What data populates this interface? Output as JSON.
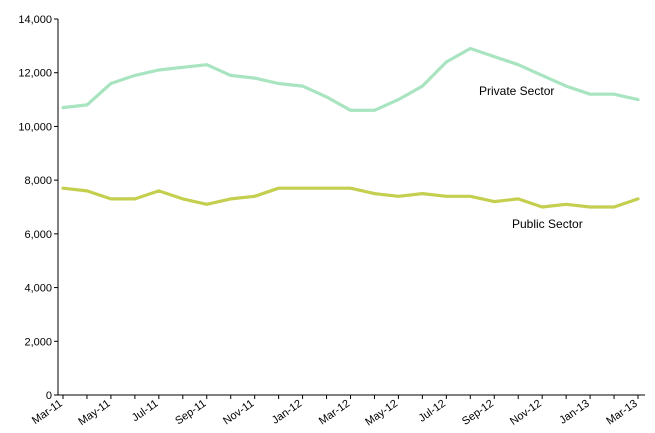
{
  "chart_data": {
    "type": "line",
    "x": [
      "Mar-11",
      "Apr-11",
      "May-11",
      "Jun-11",
      "Jul-11",
      "Aug-11",
      "Sep-11",
      "Oct-11",
      "Nov-11",
      "Dec-11",
      "Jan-12",
      "Feb-12",
      "Mar-12",
      "Apr-12",
      "May-12",
      "Jun-12",
      "Jul-12",
      "Aug-12",
      "Sep-12",
      "Oct-12",
      "Nov-12",
      "Dec-12",
      "Jan-13",
      "Feb-13",
      "Mar-13"
    ],
    "x_tick_labels": [
      "Mar-11",
      "May-11",
      "Jul-11",
      "Sep-11",
      "Nov-11",
      "Jan-12",
      "Mar-12",
      "May-12",
      "Jul-12",
      "Sep-12",
      "Nov-12",
      "Jan-13",
      "Mar-13"
    ],
    "y_ticks": [
      "0",
      "2,000",
      "4,000",
      "6,000",
      "8,000",
      "10,000",
      "12,000",
      "14,000"
    ],
    "ylim": [
      0,
      14000
    ],
    "grid": false,
    "series": [
      {
        "name": "Private Sector",
        "color": "#a8e4c0",
        "values": [
          10700,
          10800,
          11600,
          11900,
          12100,
          12200,
          12300,
          11900,
          11800,
          11600,
          11500,
          11100,
          10600,
          10600,
          11000,
          11500,
          12400,
          12900,
          12600,
          12300,
          11900,
          11500,
          11200,
          11200,
          11000
        ]
      },
      {
        "name": "Public Sector",
        "color": "#c4cf50",
        "values": [
          7700,
          7600,
          7300,
          7300,
          7600,
          7300,
          7100,
          7300,
          7400,
          7700,
          7700,
          7700,
          7700,
          7500,
          7400,
          7500,
          7400,
          7400,
          7200,
          7300,
          7000,
          7100,
          7000,
          7000,
          7300
        ]
      }
    ]
  }
}
